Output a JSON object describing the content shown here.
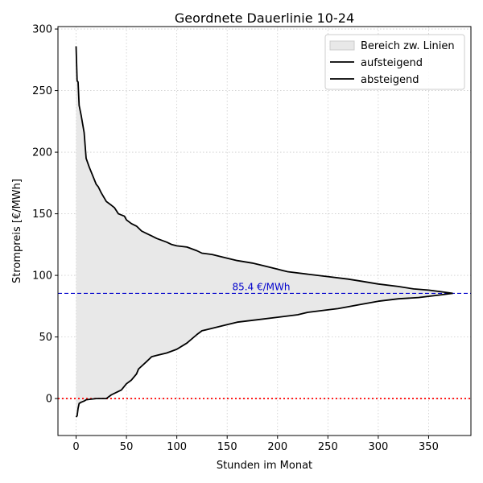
{
  "chart_data": {
    "type": "line",
    "title": "Geordnete Dauerlinie 10-24",
    "xlabel": "Stunden im Monat",
    "ylabel": "Strompreis [€/MWh]",
    "xlim": [
      -18,
      392
    ],
    "ylim": [
      -30,
      302
    ],
    "xticks": [
      0,
      50,
      100,
      150,
      200,
      250,
      300,
      350
    ],
    "yticks": [
      0,
      50,
      100,
      150,
      200,
      250,
      300
    ],
    "grid": true,
    "legend_position": "top-right",
    "legend": [
      "Bereich zw. Linien",
      "aufsteigend",
      "absteigend"
    ],
    "fill_label": "Bereich zw. Linien",
    "fill_color": "#e8e8e8",
    "line_color": "#000000",
    "series": [
      {
        "name": "absteigend",
        "x": [
          0,
          1,
          2,
          3,
          5,
          8,
          10,
          13,
          16,
          20,
          22,
          25,
          30,
          35,
          38,
          42,
          48,
          50,
          55,
          60,
          65,
          70,
          75,
          80,
          90,
          95,
          100,
          110,
          120,
          125,
          135,
          150,
          160,
          175,
          185,
          200,
          205,
          210,
          230,
          250,
          270,
          285,
          300,
          320,
          335,
          350,
          360,
          374
        ],
        "y": [
          286,
          258,
          257,
          238,
          230,
          216,
          195,
          188,
          182,
          174,
          172,
          167,
          160,
          157,
          155,
          150,
          148,
          145,
          142,
          140,
          136,
          134,
          132,
          130,
          127,
          125,
          124,
          123,
          120,
          118,
          117,
          114,
          112,
          110,
          108,
          105,
          104,
          103,
          101,
          99,
          97,
          95,
          93,
          91,
          89,
          88,
          87,
          85.4
        ]
      },
      {
        "name": "aufsteigend",
        "x": [
          0,
          1,
          2,
          3,
          5,
          8,
          10,
          15,
          20,
          25,
          30,
          35,
          40,
          45,
          50,
          55,
          60,
          62,
          70,
          75,
          80,
          90,
          100,
          110,
          120,
          125,
          135,
          150,
          160,
          180,
          200,
          220,
          230,
          250,
          260,
          280,
          300,
          320,
          340,
          360,
          374
        ],
        "y": [
          -15,
          -14,
          -8,
          -4,
          -3,
          -2,
          -1,
          -0.5,
          0,
          0,
          0,
          3,
          5,
          7,
          12,
          15,
          20,
          24,
          30,
          34,
          35,
          37,
          40,
          45,
          52,
          55,
          57,
          60,
          62,
          64,
          66,
          68,
          70,
          72,
          73,
          76,
          79,
          81,
          82,
          84,
          85.4
        ]
      }
    ],
    "hlines": [
      {
        "y": 85.4,
        "color": "#0000cc",
        "style": "dashed"
      },
      {
        "y": 0,
        "color": "#ff0000",
        "style": "dotted"
      }
    ],
    "annotations": [
      {
        "text": "85.4 €/MWh",
        "x": 155,
        "y": 85.4
      }
    ]
  }
}
